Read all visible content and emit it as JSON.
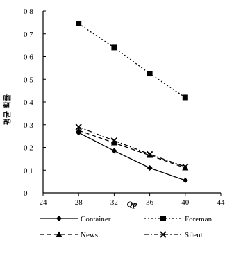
{
  "chart_data": {
    "type": "line",
    "xlabel": "Qp",
    "ylabel": "평균 확률",
    "xlim": [
      24,
      44
    ],
    "ylim": [
      0,
      0.8
    ],
    "x_ticks": [
      "24",
      "28",
      "32",
      "36",
      "40",
      "44"
    ],
    "y_ticks": [
      "0",
      "0 1",
      "0 2",
      "0 3",
      "0 4",
      "0 5",
      "0 6",
      "0 7",
      "0 8"
    ],
    "grid": false,
    "legend_position": "bottom",
    "x": [
      28,
      32,
      36,
      40
    ],
    "series": [
      {
        "name": "Container",
        "values": [
          0.265,
          0.185,
          0.11,
          0.055
        ],
        "line": "solid",
        "marker": "diamond",
        "color": "#000000"
      },
      {
        "name": "Foreman",
        "values": [
          0.745,
          0.64,
          0.525,
          0.42
        ],
        "line": "dotted",
        "marker": "square",
        "color": "#000000"
      },
      {
        "name": "News",
        "values": [
          0.275,
          0.22,
          0.165,
          0.11
        ],
        "line": "dashed",
        "marker": "triangle",
        "color": "#000000"
      },
      {
        "name": "Silent",
        "values": [
          0.29,
          0.23,
          0.17,
          0.115
        ],
        "line": "dashdot",
        "marker": "x",
        "color": "#000000"
      }
    ]
  }
}
